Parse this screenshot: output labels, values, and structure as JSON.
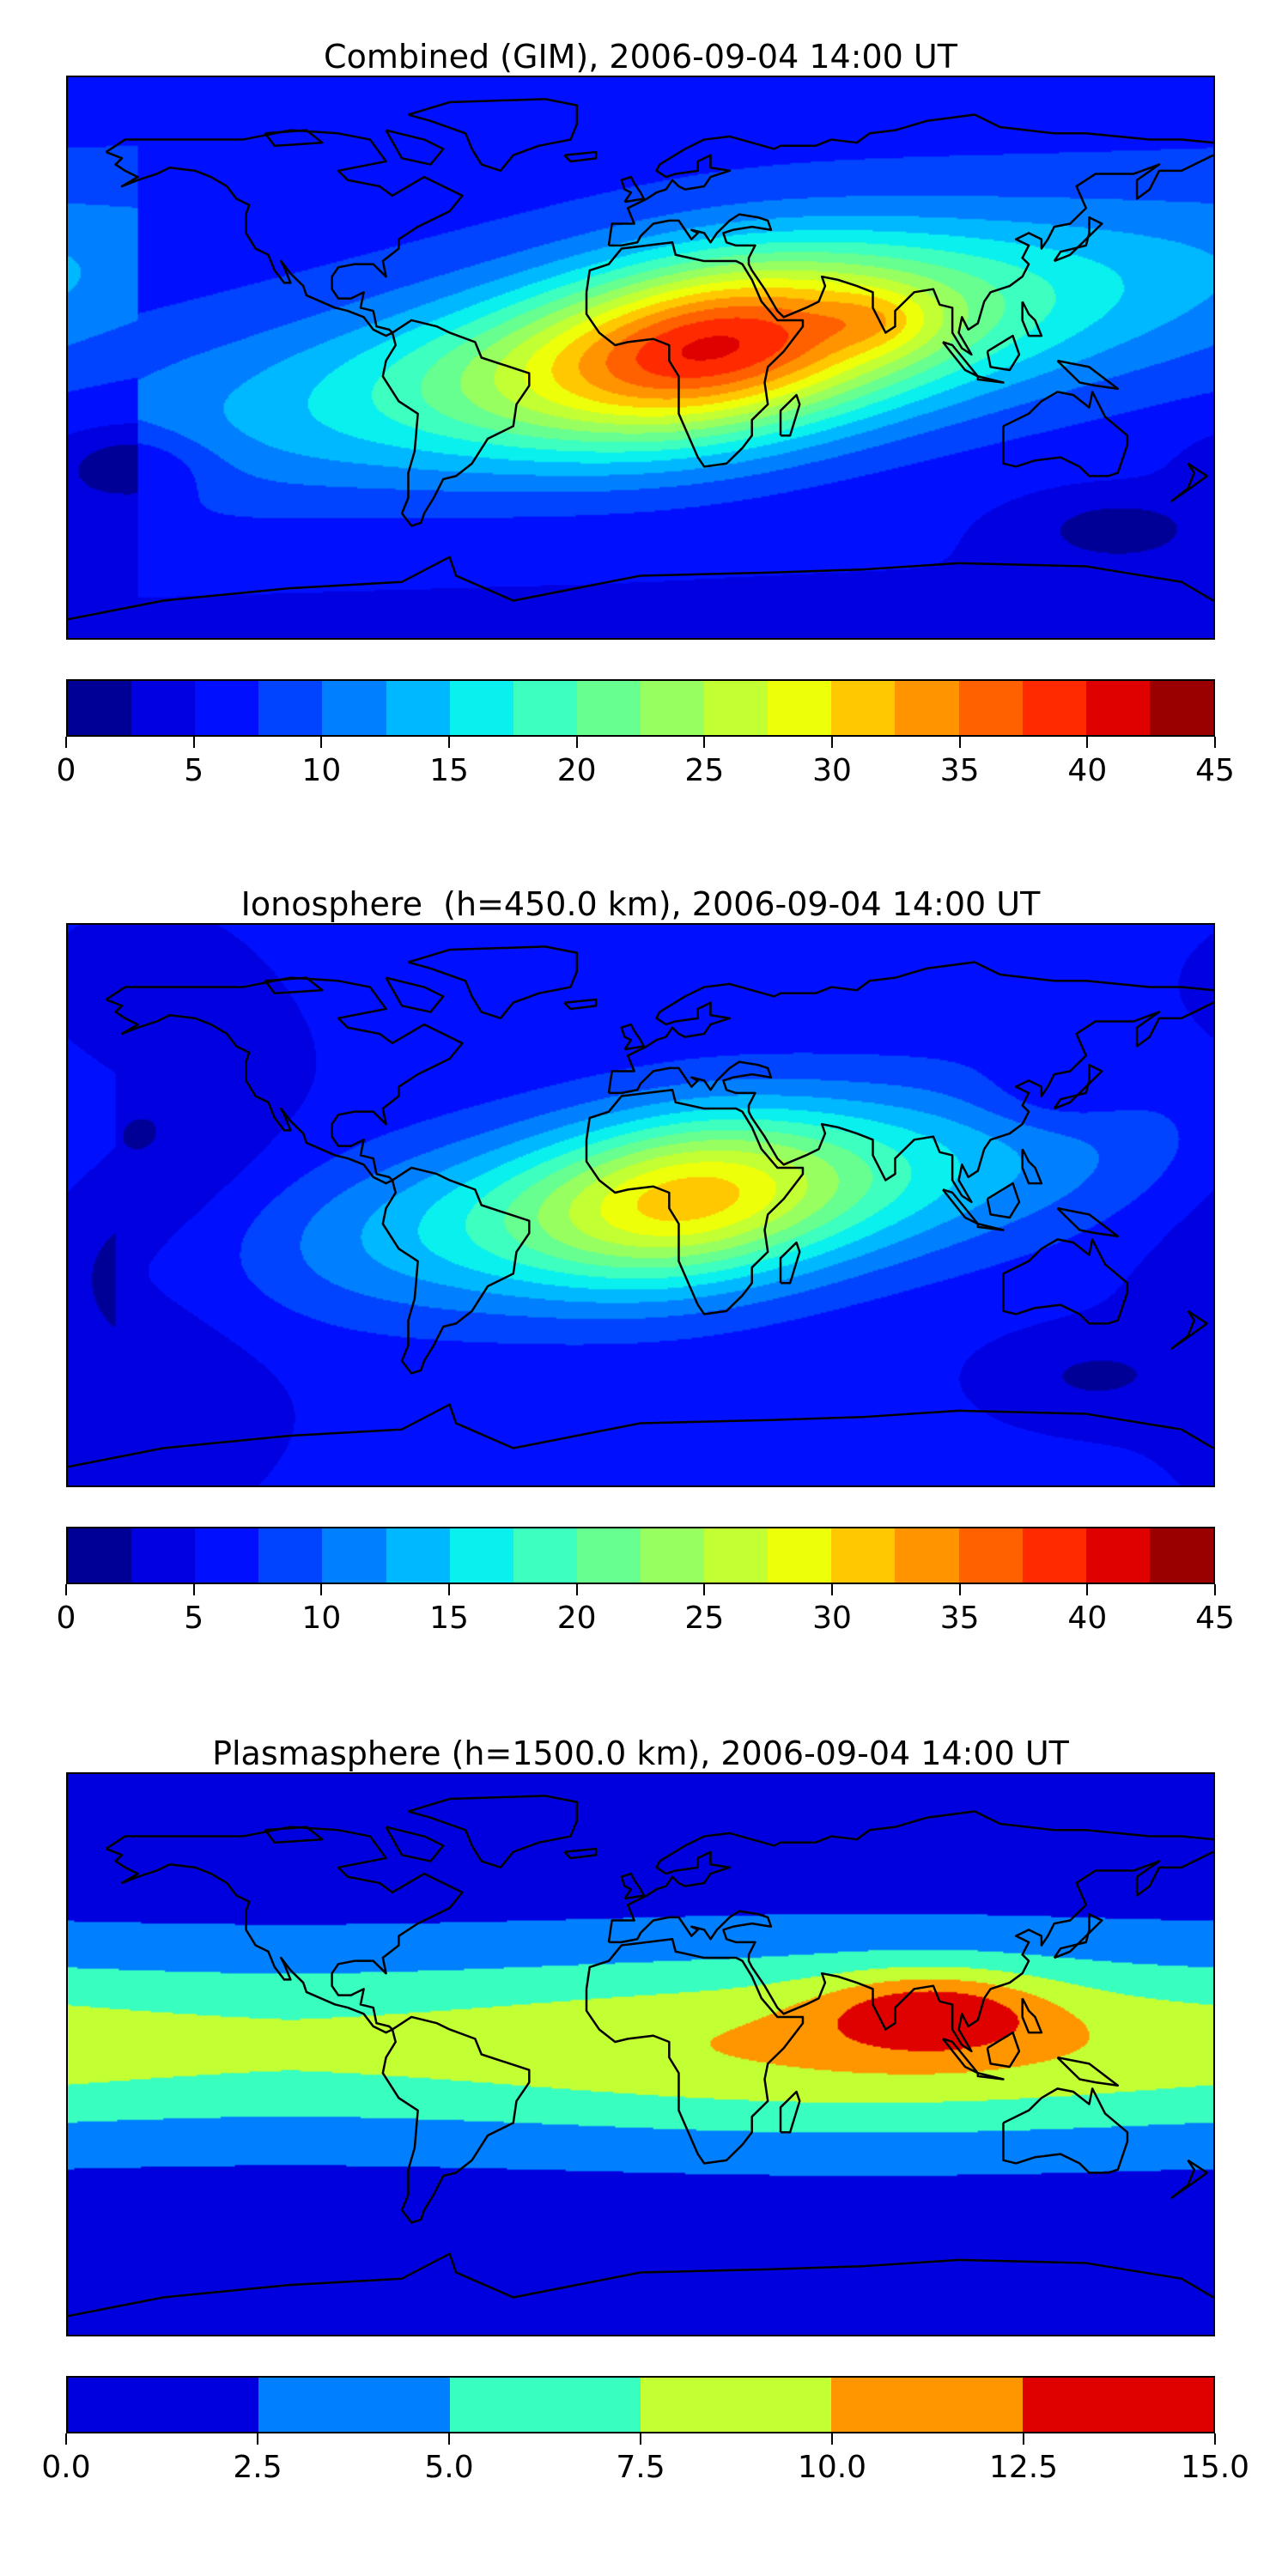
{
  "panels": [
    {
      "title": "Combined (GIM), 2006-09-04 14:00 UT",
      "colorbar": {
        "levels": [
          0,
          2.5,
          5,
          7.5,
          10,
          12.5,
          15,
          17.5,
          20,
          22.5,
          25,
          27.5,
          30,
          32.5,
          35,
          37.5,
          40,
          42.5,
          45
        ],
        "colors": [
          "#000096",
          "#0000e0",
          "#0010ff",
          "#0044ff",
          "#0080ff",
          "#00b8ff",
          "#0af0ee",
          "#3cffc0",
          "#66ff90",
          "#98ff60",
          "#c2ff33",
          "#eeff0a",
          "#ffc800",
          "#ff9400",
          "#ff6000",
          "#ff2a00",
          "#df0000",
          "#9a0000"
        ],
        "tick_values": [
          0,
          5,
          10,
          15,
          20,
          25,
          30,
          35,
          40,
          45
        ],
        "tick_labels": [
          "0",
          "5",
          "10",
          "15",
          "20",
          "25",
          "30",
          "35",
          "40",
          "45"
        ]
      }
    },
    {
      "title": "Ionosphere  (h=450.0 km), 2006-09-04 14:00 UT",
      "colorbar": {
        "levels": [
          0,
          2.5,
          5,
          7.5,
          10,
          12.5,
          15,
          17.5,
          20,
          22.5,
          25,
          27.5,
          30,
          32.5,
          35,
          37.5,
          40,
          42.5,
          45
        ],
        "colors": [
          "#000096",
          "#0000e0",
          "#0010ff",
          "#0044ff",
          "#0080ff",
          "#00b8ff",
          "#0af0ee",
          "#3cffc0",
          "#66ff90",
          "#98ff60",
          "#c2ff33",
          "#eeff0a",
          "#ffc800",
          "#ff9400",
          "#ff6000",
          "#ff2a00",
          "#df0000",
          "#9a0000"
        ],
        "tick_values": [
          0,
          5,
          10,
          15,
          20,
          25,
          30,
          35,
          40,
          45
        ],
        "tick_labels": [
          "0",
          "5",
          "10",
          "15",
          "20",
          "25",
          "30",
          "35",
          "40",
          "45"
        ]
      }
    },
    {
      "title": "Plasmasphere (h=1500.0 km), 2006-09-04 14:00 UT",
      "colorbar": {
        "levels": [
          0,
          2.5,
          5,
          7.5,
          10,
          12.5,
          15
        ],
        "colors": [
          "#0000df",
          "#0080ff",
          "#38ffc0",
          "#c2ff33",
          "#ff9600",
          "#df0000"
        ],
        "tick_values": [
          0,
          2.5,
          5,
          7.5,
          10,
          12.5,
          15
        ],
        "tick_labels": [
          "0.0",
          "2.5",
          "5.0",
          "7.5",
          "10.0",
          "12.5",
          "15.0"
        ]
      }
    }
  ]
}
